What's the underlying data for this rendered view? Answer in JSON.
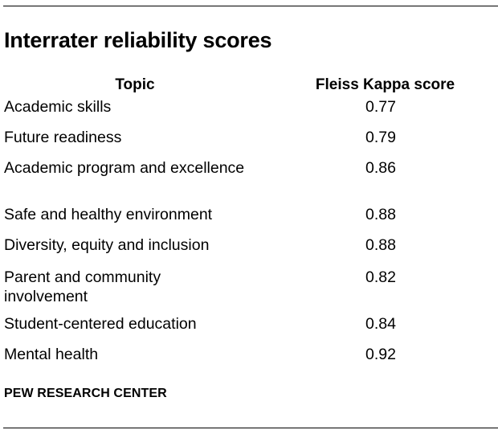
{
  "title": "Interrater reliability scores",
  "table": {
    "headers": {
      "topic": "Topic",
      "score": "Fleiss Kappa score"
    },
    "rows": [
      {
        "topic": "Academic skills",
        "score": "0.77"
      },
      {
        "topic": "Future readiness",
        "score": "0.79"
      },
      {
        "topic": "Academic program and excellence",
        "score": "0.86"
      },
      {
        "topic": "Safe and healthy environment",
        "score": "0.88"
      },
      {
        "topic": "Diversity, equity and inclusion",
        "score": "0.88"
      },
      {
        "topic": "Parent and community involvement",
        "score": "0.82"
      },
      {
        "topic": "Student-centered education",
        "score": "0.84"
      },
      {
        "topic": "Mental health",
        "score": "0.92"
      }
    ]
  },
  "source": "PEW RESEARCH CENTER"
}
